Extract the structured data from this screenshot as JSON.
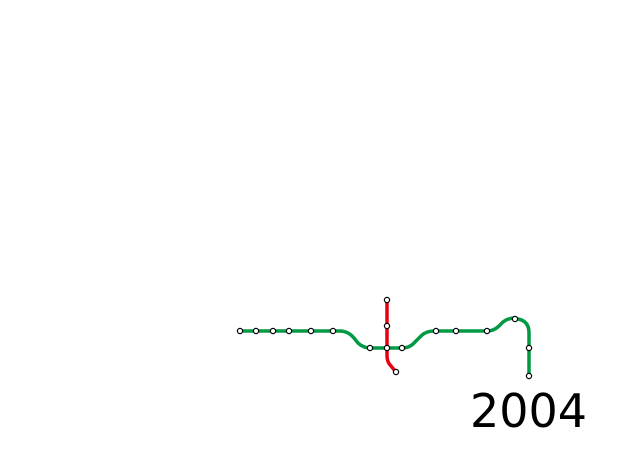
{
  "year": "2004",
  "colors": {
    "background": "#ffffff",
    "green_line": "#009944",
    "red_line": "#e60012",
    "station_fill": "#ffffff",
    "station_stroke": "#000000",
    "text": "#000000"
  },
  "lines": [
    {
      "id": "green",
      "color_key": "green_line"
    },
    {
      "id": "red",
      "color_key": "red_line"
    }
  ]
}
